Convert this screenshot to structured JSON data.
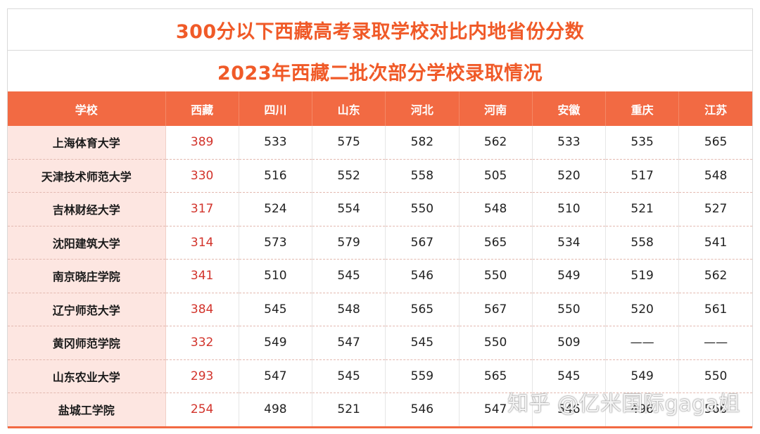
{
  "title": "300分以下西藏高考录取学校对比内地省份分数",
  "subtitle": "2023年西藏二批次部分学校录取情况",
  "table": {
    "headers": [
      "学校",
      "西藏",
      "四川",
      "山东",
      "河北",
      "河南",
      "安徽",
      "重庆",
      "江苏"
    ],
    "rows": [
      [
        "上海体育大学",
        "389",
        "533",
        "575",
        "582",
        "562",
        "533",
        "535",
        "565"
      ],
      [
        "天津技术师范大学",
        "330",
        "516",
        "552",
        "558",
        "505",
        "520",
        "517",
        "548"
      ],
      [
        "吉林财经大学",
        "317",
        "524",
        "554",
        "550",
        "548",
        "510",
        "521",
        "527"
      ],
      [
        "沈阳建筑大学",
        "314",
        "573",
        "579",
        "567",
        "565",
        "534",
        "558",
        "541"
      ],
      [
        "南京晓庄学院",
        "341",
        "510",
        "545",
        "546",
        "550",
        "549",
        "519",
        "562"
      ],
      [
        "辽宁师范大学",
        "384",
        "545",
        "548",
        "565",
        "567",
        "550",
        "520",
        "561"
      ],
      [
        "黄冈师范学院",
        "332",
        "549",
        "547",
        "545",
        "550",
        "509",
        "——",
        "——"
      ],
      [
        "山东农业大学",
        "293",
        "547",
        "545",
        "559",
        "565",
        "545",
        "549",
        "550"
      ],
      [
        "盐城工学院",
        "254",
        "498",
        "521",
        "546",
        "547",
        "546",
        "496",
        "566"
      ]
    ]
  },
  "watermark": "知乎 @亿米国际gaga姐",
  "colors": {
    "accent": "#f05a28",
    "header_bg": "#f26a43",
    "school_bg": "#fde6e1",
    "tibet_text": "#d2332b"
  }
}
